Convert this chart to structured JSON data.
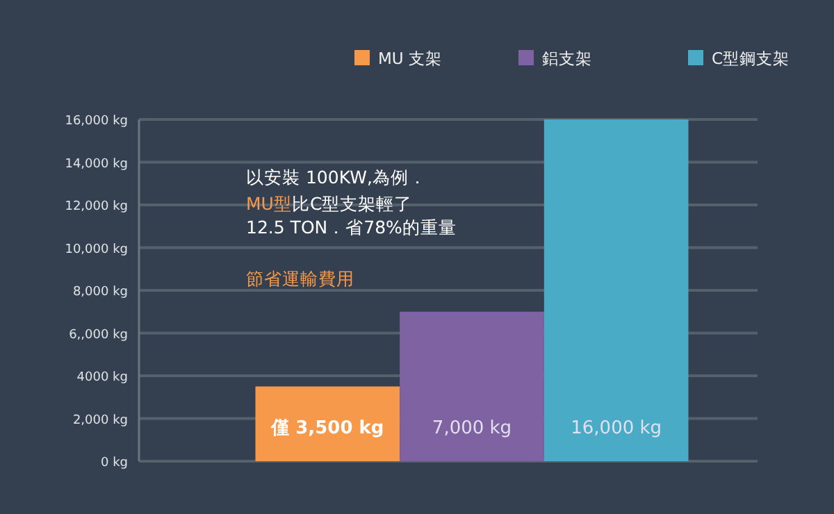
{
  "chart_data": {
    "type": "bar",
    "categories": [
      null
    ],
    "series": [
      {
        "name": "MU 支架",
        "color": "#f7994a",
        "values": [
          3500
        ],
        "value_labels": [
          "僅 3,500 kg"
        ]
      },
      {
        "name": "鋁支架",
        "color": "#7f62a2",
        "values": [
          7000
        ],
        "value_labels": [
          "7,000 kg"
        ]
      },
      {
        "name": "C型鋼支架",
        "color": "#4aabc6",
        "values": [
          16000
        ],
        "value_labels": [
          "16,000 kg"
        ]
      }
    ],
    "ylim": [
      0,
      16000
    ],
    "yticks": [
      {
        "value": 0,
        "label": "0 kg"
      },
      {
        "value": 2000,
        "label": "2,000 kg"
      },
      {
        "value": 4000,
        "label": "4000 kg"
      },
      {
        "value": 6000,
        "label": "6,,000 kg"
      },
      {
        "value": 8000,
        "label": "8,000 kg"
      },
      {
        "value": 10000,
        "label": "10,000 kg"
      },
      {
        "value": 12000,
        "label": "12,000 kg"
      },
      {
        "value": 14000,
        "label": "14,000 kg"
      },
      {
        "value": 16000,
        "label": "16,000 kg"
      }
    ],
    "grid": "y",
    "legend": "top right",
    "annotations": [
      "以安裝 100KW,為例．",
      "MU型",
      "比C型支架輕了",
      "12.5  TON．省78%的重量",
      "節省運輸費用"
    ]
  }
}
